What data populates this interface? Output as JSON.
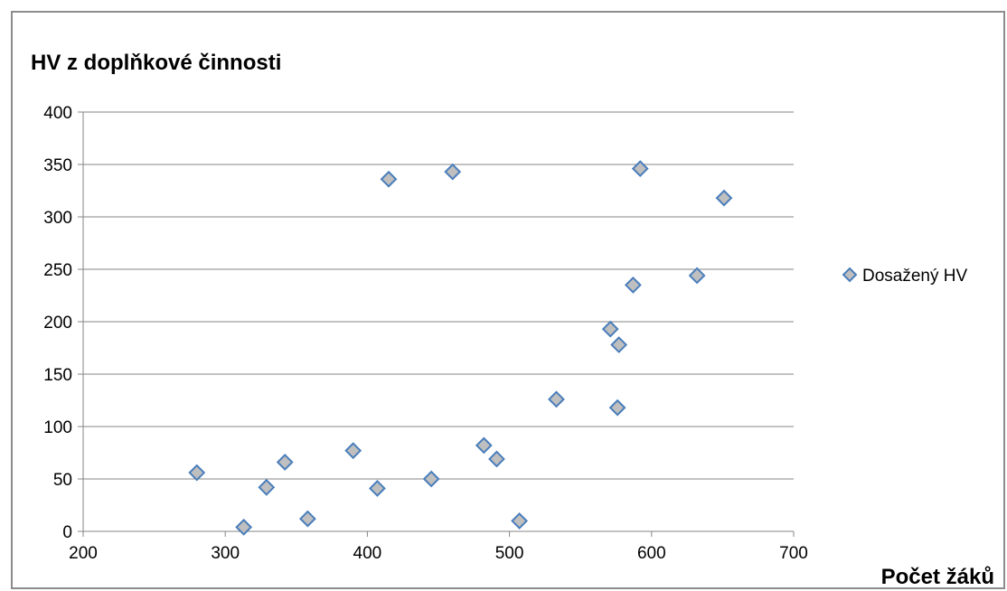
{
  "chart_data": {
    "type": "scatter",
    "title": "HV z doplňkové činnosti",
    "xlabel": "Počet žáků",
    "ylabel": "",
    "xlim": [
      200,
      700
    ],
    "ylim": [
      0,
      400
    ],
    "x_ticks": [
      "200",
      "300",
      "400",
      "500",
      "600",
      "700"
    ],
    "y_ticks": [
      "0",
      "50",
      "100",
      "150",
      "200",
      "250",
      "300",
      "350",
      "400"
    ],
    "grid": "horizontal",
    "legend_position": "right",
    "series": [
      {
        "name": "Dosažený HV",
        "marker": "diamond",
        "color": "#bfbfbf",
        "edge_color": "#4a7ebb",
        "points": [
          {
            "x": 280,
            "y": 56
          },
          {
            "x": 313,
            "y": 4
          },
          {
            "x": 329,
            "y": 42
          },
          {
            "x": 342,
            "y": 66
          },
          {
            "x": 358,
            "y": 12
          },
          {
            "x": 390,
            "y": 77
          },
          {
            "x": 407,
            "y": 41
          },
          {
            "x": 415,
            "y": 336
          },
          {
            "x": 445,
            "y": 50
          },
          {
            "x": 460,
            "y": 343
          },
          {
            "x": 482,
            "y": 82
          },
          {
            "x": 491,
            "y": 69
          },
          {
            "x": 507,
            "y": 10
          },
          {
            "x": 533,
            "y": 126
          },
          {
            "x": 571,
            "y": 193
          },
          {
            "x": 576,
            "y": 118
          },
          {
            "x": 577,
            "y": 178
          },
          {
            "x": 587,
            "y": 235
          },
          {
            "x": 592,
            "y": 346
          },
          {
            "x": 632,
            "y": 244
          },
          {
            "x": 651,
            "y": 318
          }
        ]
      }
    ]
  }
}
